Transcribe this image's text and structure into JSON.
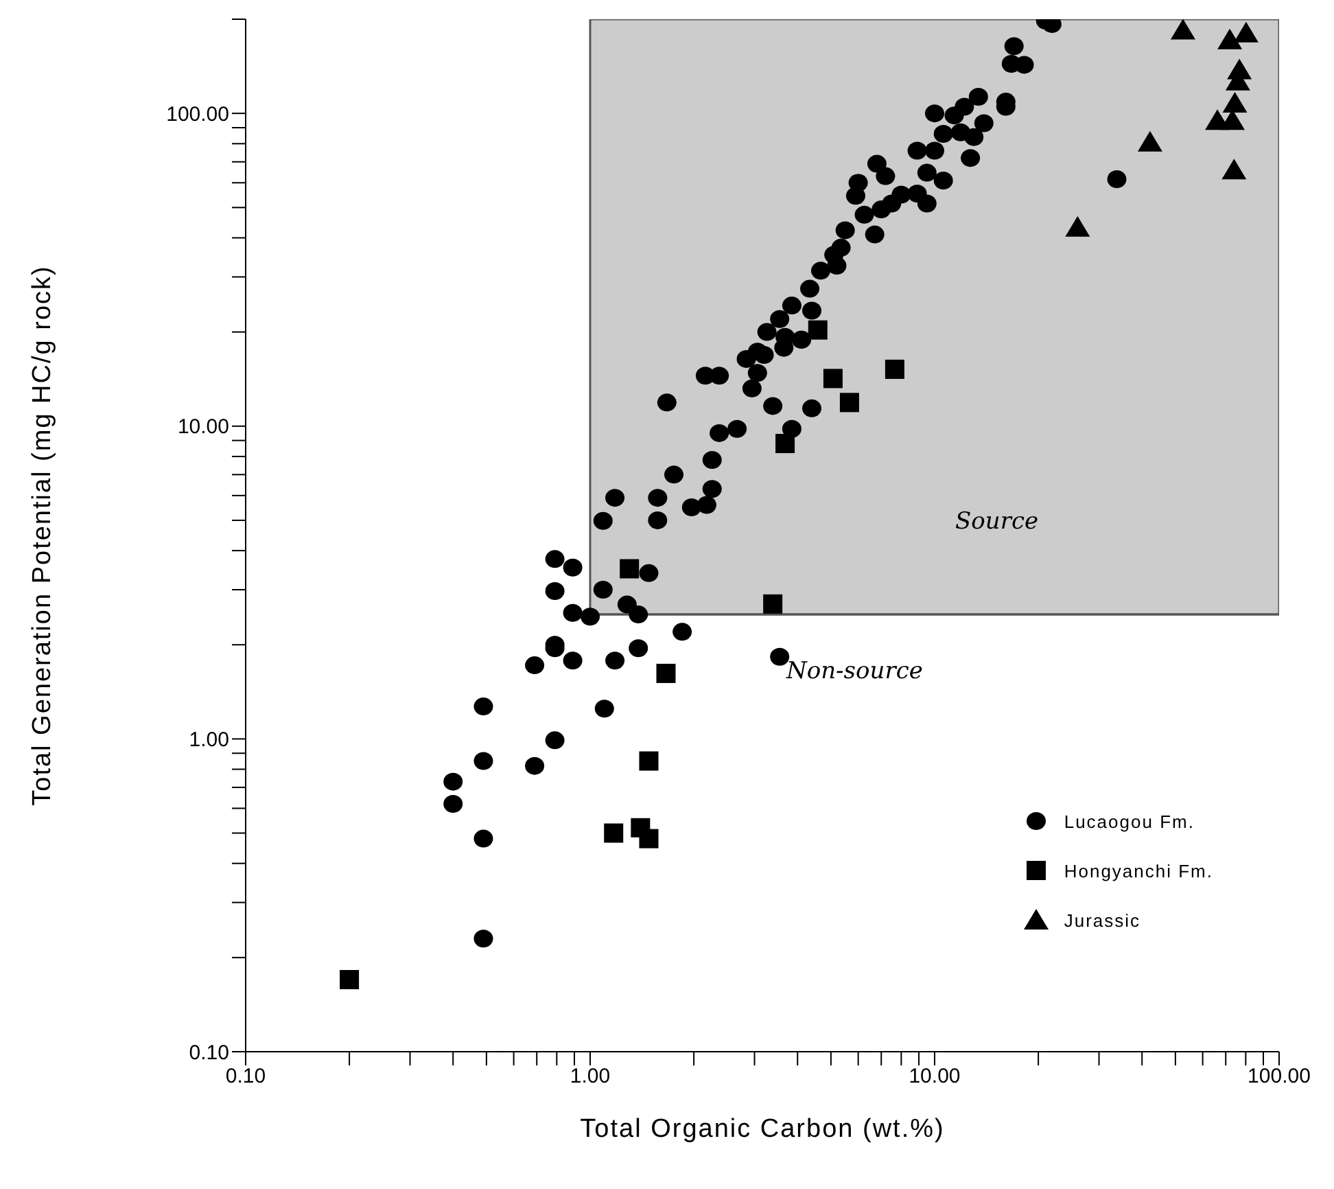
{
  "chart_data": {
    "type": "scatter",
    "xlabel": "Total Organic Carbon (wt.%)",
    "ylabel": "Total Generation Potential (mg HC/g rock)",
    "log": "xy",
    "xlim": [
      0.1,
      100
    ],
    "ylim": [
      0.1,
      200
    ],
    "xticks": [
      {
        "value": 0.1,
        "label": "0.10"
      },
      {
        "value": 0.2,
        "label": null
      },
      {
        "value": 0.3,
        "label": null
      },
      {
        "value": 0.4,
        "label": null
      },
      {
        "value": 0.5,
        "label": null
      },
      {
        "value": 0.6,
        "label": null
      },
      {
        "value": 0.7,
        "label": null
      },
      {
        "value": 0.8,
        "label": null
      },
      {
        "value": 0.9,
        "label": null
      },
      {
        "value": 1,
        "label": "1.00"
      },
      {
        "value": 2,
        "label": null
      },
      {
        "value": 3,
        "label": null
      },
      {
        "value": 4,
        "label": null
      },
      {
        "value": 5,
        "label": null
      },
      {
        "value": 6,
        "label": null
      },
      {
        "value": 7,
        "label": null
      },
      {
        "value": 8,
        "label": null
      },
      {
        "value": 9,
        "label": null
      },
      {
        "value": 10,
        "label": "10.00"
      },
      {
        "value": 20,
        "label": null
      },
      {
        "value": 30,
        "label": null
      },
      {
        "value": 40,
        "label": null
      },
      {
        "value": 50,
        "label": null
      },
      {
        "value": 60,
        "label": null
      },
      {
        "value": 70,
        "label": null
      },
      {
        "value": 80,
        "label": null
      },
      {
        "value": 90,
        "label": null
      },
      {
        "value": 100,
        "label": "100.00"
      }
    ],
    "yticks": [
      {
        "value": 0.1,
        "label": "0.10"
      },
      {
        "value": 0.2,
        "label": null
      },
      {
        "value": 0.3,
        "label": null
      },
      {
        "value": 0.4,
        "label": null
      },
      {
        "value": 0.5,
        "label": null
      },
      {
        "value": 0.6,
        "label": null
      },
      {
        "value": 0.7,
        "label": null
      },
      {
        "value": 0.8,
        "label": null
      },
      {
        "value": 0.9,
        "label": null
      },
      {
        "value": 1,
        "label": "1.00"
      },
      {
        "value": 2,
        "label": null
      },
      {
        "value": 3,
        "label": null
      },
      {
        "value": 4,
        "label": null
      },
      {
        "value": 5,
        "label": null
      },
      {
        "value": 6,
        "label": null
      },
      {
        "value": 7,
        "label": null
      },
      {
        "value": 8,
        "label": null
      },
      {
        "value": 9,
        "label": null
      },
      {
        "value": 10,
        "label": "10.00"
      },
      {
        "value": 20,
        "label": null
      },
      {
        "value": 30,
        "label": null
      },
      {
        "value": 40,
        "label": null
      },
      {
        "value": 50,
        "label": null
      },
      {
        "value": 60,
        "label": null
      },
      {
        "value": 70,
        "label": null
      },
      {
        "value": 80,
        "label": null
      },
      {
        "value": 90,
        "label": null
      },
      {
        "value": 100,
        "label": "100.00"
      },
      {
        "value": 200,
        "label": null
      }
    ],
    "grid": false,
    "legend": "bottom right",
    "bands": [
      {
        "axis": "x",
        "from": 1,
        "to": 100,
        "color": "#cccccc"
      }
    ],
    "ref_lines": [
      {
        "axis": "y",
        "value": 2.5,
        "color": "#555555"
      }
    ],
    "annotations": [
      "Source",
      "Non-source"
    ],
    "series": [
      {
        "name": "Lucaogou Fm.",
        "color": "#000000",
        "marker": "circle",
        "x": [
          0.4,
          0.4,
          0.49,
          0.49,
          0.49,
          0.49,
          0.69,
          0.69,
          0.79,
          0.79,
          0.79,
          0.79,
          0.79,
          0.89,
          0.89,
          0.89,
          1.0,
          1.09,
          1.1,
          1.18,
          1.28,
          1.38,
          1.38,
          1.48,
          1.85,
          3.55,
          1.09,
          1.18,
          1.57,
          1.57,
          1.67,
          1.75,
          1.97,
          2.18,
          2.16,
          2.37,
          2.37,
          2.26,
          2.26,
          2.67,
          2.84,
          3.06,
          3.2,
          3.06,
          2.95,
          3.26,
          3.65,
          3.68,
          4.11,
          3.39,
          4.4,
          3.85,
          3.55,
          4.1,
          4.4,
          3.85,
          4.34,
          4.67,
          5.2,
          5.1,
          5.35,
          5.5,
          6.7,
          6.25,
          7.0,
          7.5,
          8.0,
          8.9,
          9.5,
          5.9,
          6.0,
          6.8,
          7.2,
          9.5,
          10.6,
          8.9,
          10.0,
          12.7,
          10.6,
          13.0,
          11.9,
          13.9,
          16.1,
          16.1,
          10.0,
          11.4,
          12.2,
          13.4,
          17.0,
          16.7,
          18.2,
          21.0,
          21.9,
          33.8
        ],
        "values": [
          0.73,
          0.62,
          1.27,
          0.85,
          0.48,
          0.23,
          0.82,
          1.72,
          0.99,
          1.95,
          2.0,
          2.97,
          3.76,
          3.53,
          2.53,
          1.78,
          2.46,
          3.0,
          1.25,
          1.78,
          2.69,
          2.5,
          1.95,
          3.39,
          2.2,
          1.83,
          4.98,
          5.9,
          5.9,
          5.0,
          11.9,
          7.0,
          5.5,
          5.6,
          14.5,
          14.5,
          9.5,
          7.8,
          6.3,
          9.8,
          16.4,
          17.3,
          16.9,
          14.8,
          13.2,
          20.0,
          17.8,
          19.3,
          18.9,
          11.6,
          11.4,
          9.8,
          22.0,
          18.9,
          23.4,
          24.3,
          27.5,
          31.4,
          32.6,
          35.3,
          37.2,
          42.3,
          41,
          47.4,
          49.3,
          51.5,
          55,
          55.4,
          51.5,
          54.5,
          60,
          69,
          63,
          64.6,
          61,
          76,
          76,
          72,
          86,
          84,
          87,
          93,
          105,
          109,
          100,
          98.5,
          105,
          113,
          164,
          144,
          143,
          198,
          193,
          61.6
        ]
      },
      {
        "name": "Hongyanchi Fm.",
        "color": "#000000",
        "marker": "square",
        "x": [
          1.3,
          1.66,
          1.48,
          1.17,
          1.4,
          1.48,
          0.2,
          4.58,
          5.07,
          7.66,
          5.66,
          3.68,
          3.39
        ],
        "values": [
          3.5,
          1.62,
          0.85,
          0.5,
          0.52,
          0.48,
          0.17,
          20.3,
          14.2,
          15.2,
          11.9,
          8.8,
          2.7
        ]
      },
      {
        "name": "Jurassic",
        "color": "#000000",
        "marker": "triangle",
        "x": [
          52.6,
          71.9,
          80.2,
          76.7,
          75.9,
          74.4,
          66.2,
          73.2,
          42.2,
          74,
          26
        ],
        "values": [
          185,
          172,
          181,
          138,
          127,
          108,
          95,
          95,
          81,
          66,
          43.3
        ]
      }
    ]
  }
}
